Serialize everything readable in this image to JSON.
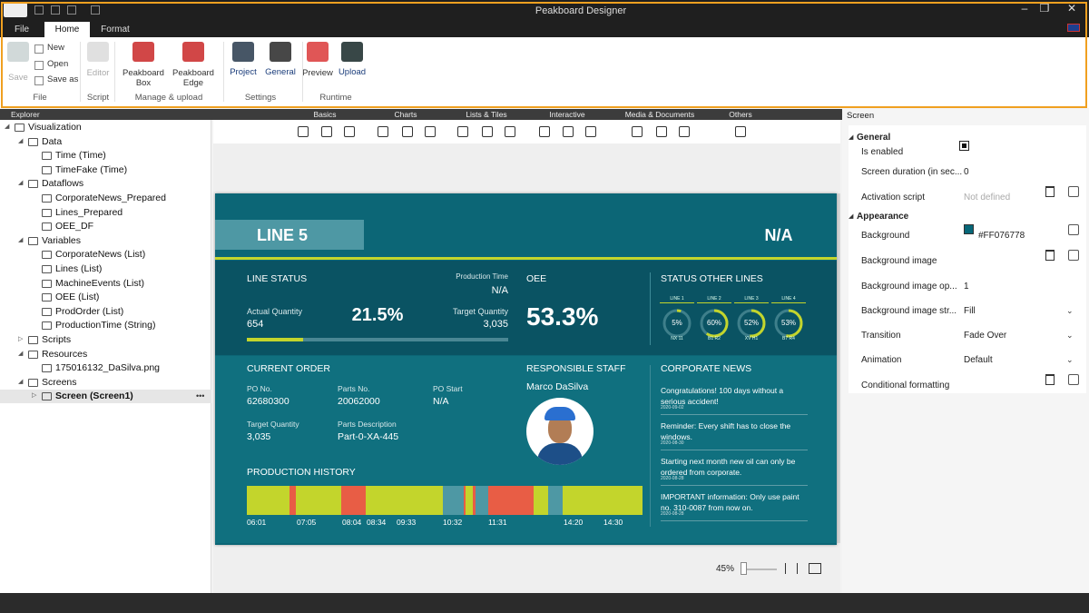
{
  "window": {
    "title": "Peakboard Designer",
    "tabs": [
      "File",
      "Home",
      "Format"
    ]
  },
  "ribbon": {
    "buttons": [
      "Save",
      "New",
      "Open",
      "Save as",
      "Editor",
      "Peakboard Box",
      "Peakboard Edge",
      "Project",
      "General",
      "Preview",
      "Upload"
    ],
    "groups": [
      "File",
      "Script",
      "Manage & upload",
      "Settings",
      "Runtime"
    ]
  },
  "explorer": {
    "title": "Explorer",
    "items": [
      "Visualization",
      "Data",
      "Time (Time)",
      "TimeFake (Time)",
      "Dataflows",
      "CorporateNews_Prepared",
      "Lines_Prepared",
      "OEE_DF",
      "Variables",
      "CorporateNews (List)",
      "Lines (List)",
      "MachineEvents (List)",
      "OEE (List)",
      "ProdOrder (List)",
      "ProductionTime (String)",
      "Scripts",
      "Resources",
      "175016132_DaSilva.png",
      "Screens",
      "Screen (Screen1)"
    ]
  },
  "toolbox": {
    "categories": [
      "Basics",
      "Charts",
      "Lists & Tiles",
      "Interactive",
      "Media & Documents",
      "Others"
    ]
  },
  "dashboard": {
    "line": "LINE 5",
    "status": "N/A",
    "line_status": {
      "title": "LINE STATUS",
      "production_time_label": "Production Time",
      "production_time": "N/A",
      "actual_label": "Actual Quantity",
      "actual": "654",
      "progress": 21.5,
      "progress_text": "21.5%",
      "target_label": "Target Quantity",
      "target": "3,035"
    },
    "oee": {
      "title": "OEE",
      "value": "53.3%"
    },
    "other_lines": {
      "title": "STATUS OTHER LINES",
      "lines": [
        {
          "name": "LINE 1",
          "value": 5,
          "text": "5%",
          "code": "NX 11"
        },
        {
          "name": "LINE 2",
          "value": 60,
          "text": "60%",
          "code": "B1 R2"
        },
        {
          "name": "LINE 3",
          "value": 52,
          "text": "52%",
          "code": "XV H1"
        },
        {
          "name": "LINE 4",
          "value": 53,
          "text": "53%",
          "code": "B7 R4"
        }
      ]
    },
    "order": {
      "title": "CURRENT ORDER",
      "fields": [
        {
          "label": "PO No.",
          "value": "62680300"
        },
        {
          "label": "Parts No.",
          "value": "20062000"
        },
        {
          "label": "PO Start",
          "value": "N/A"
        },
        {
          "label": "Target Quantity",
          "value": "3,035"
        },
        {
          "label": "Parts Description",
          "value": "Part-0-XA-445"
        }
      ]
    },
    "staff": {
      "title": "RESPONSIBLE STAFF",
      "name": "Marco DaSilva"
    },
    "news": {
      "title": "CORPORATE NEWS",
      "items": [
        {
          "text": "Congratulations! 100 days without a serious accident!",
          "date": "2020-09-02"
        },
        {
          "text": "Reminder: Every shift has to close the windows.",
          "date": "2020-08-30"
        },
        {
          "text": "Starting next month new oil can only be ordered from corporate.",
          "date": "2020-08-28"
        },
        {
          "text": "IMPORTANT information: Only use paint no. 310-0087 from now on.",
          "date": "2020-08-28"
        }
      ]
    },
    "history": {
      "title": "PRODUCTION HISTORY",
      "times": [
        "06:01",
        "07:05",
        "08:04",
        "08:34",
        "09:33",
        "10:32",
        "11:31",
        "14:20",
        "14:30"
      ]
    }
  },
  "zoom": "45%",
  "properties": {
    "title": "Screen",
    "sections": [
      {
        "name": "General",
        "rows": [
          {
            "label": "Is enabled"
          },
          {
            "label": "Screen duration (in sec...",
            "value": "0"
          },
          {
            "label": "Activation script",
            "value": "Not defined"
          }
        ]
      },
      {
        "name": "Appearance",
        "rows": [
          {
            "label": "Background",
            "value": "#FF076778"
          },
          {
            "label": "Background image"
          },
          {
            "label": "Background image op...",
            "value": "1"
          },
          {
            "label": "Background image str...",
            "value": "Fill"
          },
          {
            "label": "Transition",
            "value": "Fade Over"
          },
          {
            "label": "Animation",
            "value": "Default"
          },
          {
            "label": "Conditional formatting"
          }
        ]
      }
    ]
  }
}
